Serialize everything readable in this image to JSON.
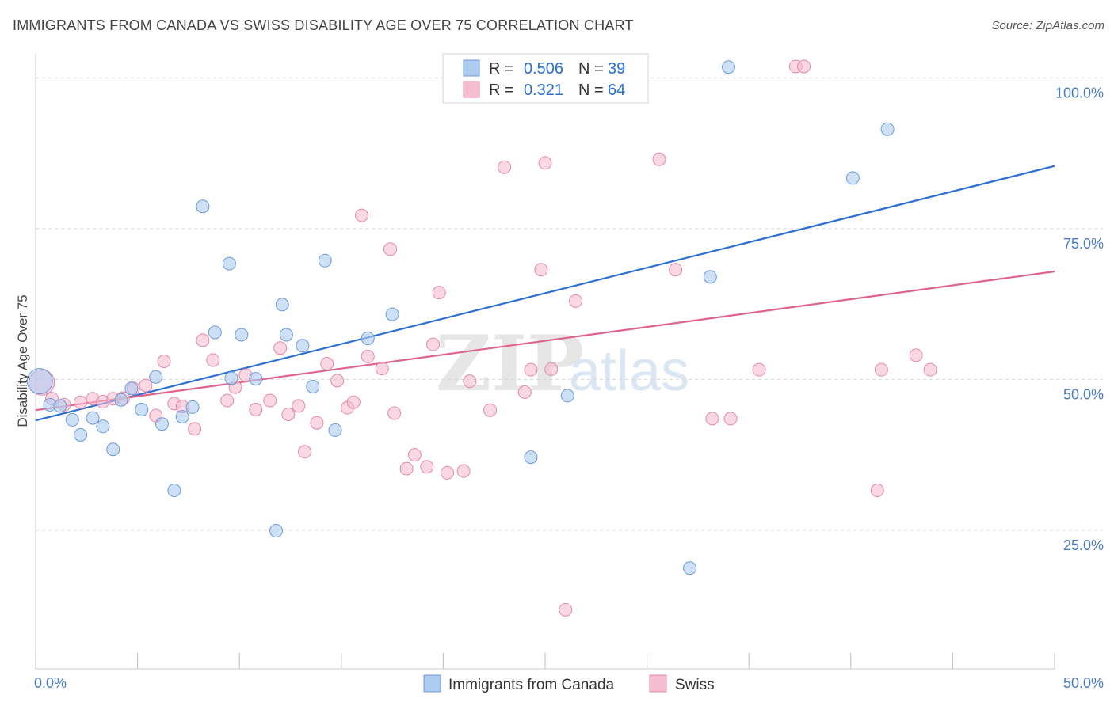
{
  "title": "IMMIGRANTS FROM CANADA VS SWISS DISABILITY AGE OVER 75 CORRELATION CHART",
  "source": "Source: ZipAtlas.com",
  "watermark": {
    "zip": "ZIP",
    "atlas": "atlas"
  },
  "colors": {
    "blue_fill": "#aecbf0",
    "blue_stroke": "#6d9ad6",
    "blue_line": "#2a6fd1",
    "pink_fill": "#f5bdd0",
    "pink_stroke": "#e38aab",
    "pink_line": "#e0628e",
    "tick_text": "#4a7cc4",
    "grid": "#d8d8d8"
  },
  "legend": {
    "rows": [
      {
        "r_label": "R =",
        "r_value": "0.506",
        "n_label": "N =",
        "n_value": "39"
      },
      {
        "r_label": "R =",
        "r_value": "0.321",
        "n_label": "N =",
        "n_value": "64"
      }
    ]
  },
  "chart_data": {
    "type": "scatter",
    "xlabel": "",
    "ylabel": "Disability Age Over 75",
    "xlim": [
      0,
      50
    ],
    "ylim": [
      2,
      104
    ],
    "x_tick_labels": [
      "0.0%",
      "50.0%"
    ],
    "y_ticks": [
      25,
      50,
      75,
      100
    ],
    "y_tick_labels": [
      "25.0%",
      "50.0%",
      "75.0%",
      "100.0%"
    ],
    "grid": "horizontal dashed",
    "legend_placement": "top-center",
    "series": [
      {
        "name": "Immigrants from Canada",
        "r": 0.506,
        "n": 39,
        "trend": [
          [
            0,
            43.2
          ],
          [
            50,
            85.4
          ]
        ],
        "points": [
          [
            0.2,
            49.7
          ],
          [
            0.7,
            45.8
          ],
          [
            1.2,
            45.6
          ],
          [
            1.8,
            43.3
          ],
          [
            2.2,
            40.8
          ],
          [
            2.8,
            43.6
          ],
          [
            3.3,
            42.2
          ],
          [
            3.8,
            38.4
          ],
          [
            4.2,
            46.6
          ],
          [
            4.7,
            48.5
          ],
          [
            5.2,
            45.0
          ],
          [
            5.9,
            50.4
          ],
          [
            6.2,
            42.6
          ],
          [
            6.8,
            31.6
          ],
          [
            7.2,
            43.8
          ],
          [
            7.7,
            45.4
          ],
          [
            8.2,
            78.7
          ],
          [
            8.8,
            57.8
          ],
          [
            9.5,
            69.2
          ],
          [
            9.6,
            50.2
          ],
          [
            10.1,
            57.4
          ],
          [
            10.8,
            50.1
          ],
          [
            11.8,
            24.9
          ],
          [
            12.1,
            62.4
          ],
          [
            12.3,
            57.4
          ],
          [
            13.1,
            55.6
          ],
          [
            13.6,
            48.8
          ],
          [
            14.2,
            69.7
          ],
          [
            14.7,
            41.6
          ],
          [
            16.3,
            56.8
          ],
          [
            17.5,
            60.8
          ],
          [
            20.6,
            101.8
          ],
          [
            24.3,
            37.1
          ],
          [
            26.1,
            47.3
          ],
          [
            32.1,
            18.7
          ],
          [
            33.1,
            67.0
          ],
          [
            34.0,
            101.8
          ],
          [
            40.1,
            83.4
          ],
          [
            41.8,
            91.5
          ]
        ]
      },
      {
        "name": "Swiss",
        "r": 0.321,
        "n": 64,
        "trend": [
          [
            0,
            44.9
          ],
          [
            50,
            67.9
          ]
        ],
        "points": [
          [
            0.3,
            49.5
          ],
          [
            0.8,
            46.8
          ],
          [
            1.4,
            45.8
          ],
          [
            2.2,
            46.2
          ],
          [
            2.8,
            46.8
          ],
          [
            3.3,
            46.3
          ],
          [
            3.8,
            46.8
          ],
          [
            4.3,
            46.9
          ],
          [
            4.8,
            48.5
          ],
          [
            5.4,
            49.0
          ],
          [
            5.9,
            44.0
          ],
          [
            6.3,
            53.0
          ],
          [
            6.8,
            46.0
          ],
          [
            7.2,
            45.5
          ],
          [
            7.8,
            41.8
          ],
          [
            8.2,
            56.5
          ],
          [
            8.7,
            53.2
          ],
          [
            9.4,
            46.5
          ],
          [
            9.8,
            48.7
          ],
          [
            10.3,
            50.7
          ],
          [
            10.8,
            45.0
          ],
          [
            11.5,
            46.5
          ],
          [
            12.0,
            55.2
          ],
          [
            12.4,
            44.2
          ],
          [
            12.9,
            45.6
          ],
          [
            13.2,
            38.0
          ],
          [
            13.8,
            42.8
          ],
          [
            14.3,
            52.6
          ],
          [
            14.8,
            49.8
          ],
          [
            15.3,
            45.3
          ],
          [
            15.6,
            46.2
          ],
          [
            16.0,
            77.2
          ],
          [
            16.3,
            53.8
          ],
          [
            17.0,
            51.8
          ],
          [
            17.4,
            71.6
          ],
          [
            18.2,
            35.2
          ],
          [
            18.6,
            37.5
          ],
          [
            19.2,
            35.5
          ],
          [
            19.5,
            55.8
          ],
          [
            19.8,
            64.4
          ],
          [
            20.2,
            34.5
          ],
          [
            21.0,
            34.8
          ],
          [
            21.3,
            49.7
          ],
          [
            22.3,
            44.9
          ],
          [
            23.0,
            85.2
          ],
          [
            24.0,
            47.9
          ],
          [
            24.3,
            51.6
          ],
          [
            24.8,
            68.2
          ],
          [
            25.0,
            85.9
          ],
          [
            25.3,
            51.7
          ],
          [
            26.0,
            11.8
          ],
          [
            26.5,
            63.0
          ],
          [
            30.6,
            86.5
          ],
          [
            31.4,
            68.2
          ],
          [
            33.2,
            43.5
          ],
          [
            34.1,
            43.5
          ],
          [
            35.5,
            51.6
          ],
          [
            37.3,
            101.9
          ],
          [
            37.7,
            101.9
          ],
          [
            43.2,
            54.0
          ],
          [
            43.9,
            51.6
          ],
          [
            41.3,
            31.6
          ],
          [
            41.5,
            51.6
          ],
          [
            17.6,
            44.4
          ]
        ]
      }
    ]
  }
}
